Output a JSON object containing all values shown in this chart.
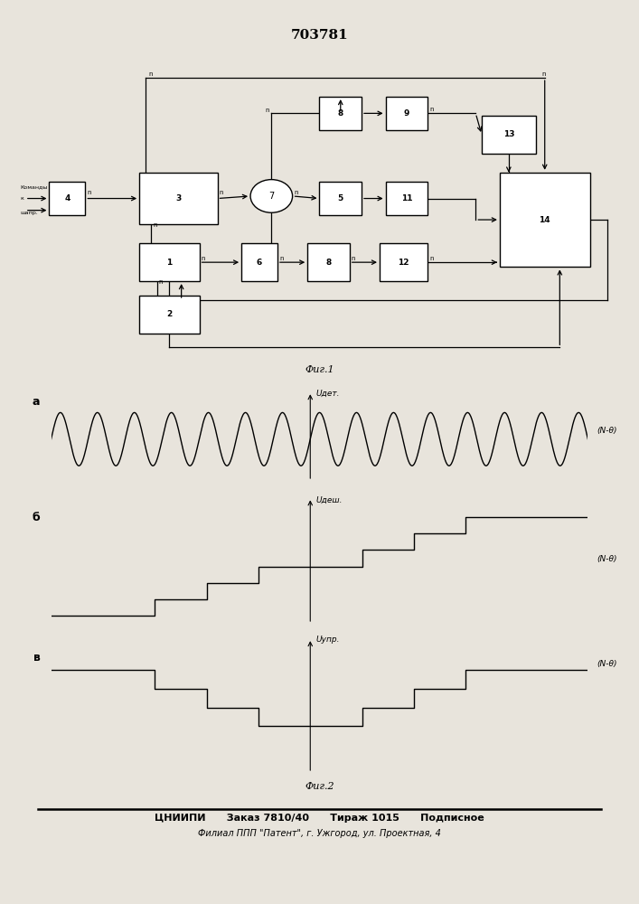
{
  "title": "703781",
  "fig1_label": "Фиг.1",
  "fig2_label": "Фиг.2",
  "footer_line1": "ЦНИИПИ      Заказ 7810/40      Тираж 1015      Подписное",
  "footer_line2": "Филиал ППП \"Патент\", г. Ужгород, ул. Проектная, 4",
  "bg_color": "#e8e4dc",
  "label_a": "а",
  "label_b": "б",
  "label_c": "в",
  "y_label_a": "Uдет.",
  "y_label_b": "Uдеш.",
  "y_label_c": "Uупр.",
  "x_label": "(N-θ)"
}
